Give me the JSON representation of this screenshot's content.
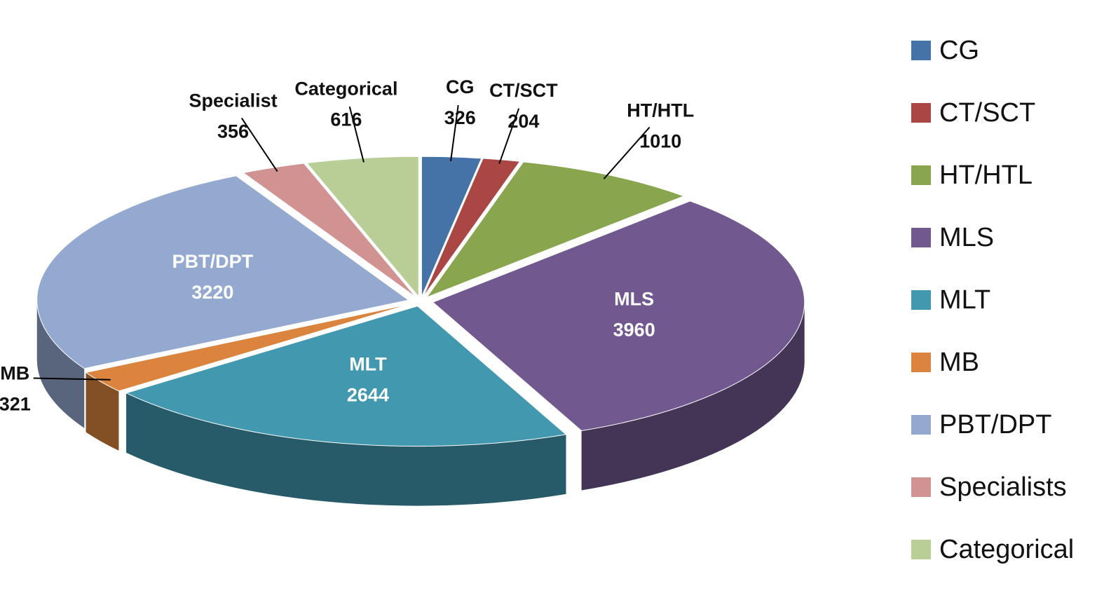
{
  "chart_data": {
    "type": "pie",
    "categories": [
      "CG",
      "CT/SCT",
      "HT/HTL",
      "MLS",
      "MLT",
      "MB",
      "PBT/DPT",
      "Specialists",
      "Categorical"
    ],
    "label_names": [
      "CG",
      "CT/SCT",
      "HT/HTL",
      "MLS",
      "MLT",
      "MB",
      "PBT/DPT",
      "Specialist",
      "Categorical"
    ],
    "values": [
      326,
      204,
      1010,
      3960,
      2644,
      321,
      3220,
      356,
      616
    ],
    "colors": [
      "#4572a7",
      "#aa4643",
      "#89a54e",
      "#71588f",
      "#4198af",
      "#db843d",
      "#93a9cf",
      "#d09392",
      "#b9cd96"
    ],
    "legend": "right"
  }
}
